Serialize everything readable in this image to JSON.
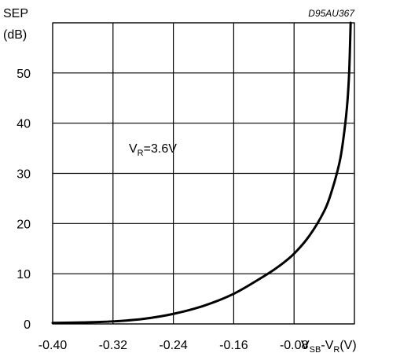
{
  "chart_data": {
    "type": "line",
    "figure_code": "D95AU367",
    "ylabel_line1": "SEP",
    "ylabel_line2": "(dB)",
    "xlabel_main": "V",
    "xlabel_sub1": "SB",
    "xlabel_mid": "-V",
    "xlabel_sub2": "R",
    "xlabel_tail": "(V)",
    "annotation_main": "V",
    "annotation_sub": "R",
    "annotation_tail": "=3.6V",
    "xlim": [
      -0.4,
      0.0
    ],
    "ylim": [
      0,
      60
    ],
    "xticks": [
      -0.4,
      -0.32,
      -0.24,
      -0.16,
      -0.08,
      0.0
    ],
    "yticks": [
      0,
      10,
      20,
      30,
      40,
      50,
      60
    ],
    "xtick_labels": [
      "-0.40",
      "-0.32",
      "-0.24",
      "-0.16",
      "-0.08"
    ],
    "ytick_labels": [
      "0",
      "10",
      "20",
      "30",
      "40",
      "50"
    ],
    "grid": true,
    "series": [
      {
        "color": "#000000",
        "x": [
          -0.4,
          -0.36,
          -0.32,
          -0.28,
          -0.24,
          -0.2,
          -0.16,
          -0.12,
          -0.1,
          -0.08,
          -0.06,
          -0.04,
          -0.03,
          -0.02,
          -0.015,
          -0.01,
          -0.007,
          -0.005
        ],
        "y": [
          0.2,
          0.3,
          0.5,
          1.0,
          2.0,
          3.6,
          6.0,
          9.5,
          11.5,
          14.0,
          17.5,
          22.5,
          26.5,
          32.0,
          36.5,
          43.0,
          50.0,
          60.0
        ]
      }
    ]
  }
}
